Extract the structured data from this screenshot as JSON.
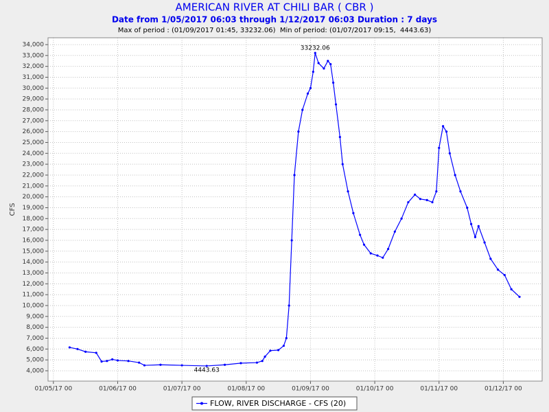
{
  "chart_data": {
    "type": "line",
    "title": "AMERICAN RIVER AT CHILI BAR ( CBR )",
    "subtitle": "Date from 1/05/2017 06:03 through 1/12/2017 06:03 Duration : 7 days",
    "note": "Max of period : (01/09/2017 01:45, 33232.06)  Min of period: (01/07/2017 09:15,  4443.63)",
    "y_label": "CFS",
    "grid": true,
    "xlim": [
      "2017-01-04T22:00",
      "2017-01-12T14:30"
    ],
    "ylim": [
      3050,
      34630
    ],
    "xticks": [
      {
        "value": "2017-01-05T00:00",
        "label": "01/05/17 00"
      },
      {
        "value": "2017-01-06T00:00",
        "label": "01/06/17 00"
      },
      {
        "value": "2017-01-07T00:00",
        "label": "01/07/17 00"
      },
      {
        "value": "2017-01-08T00:00",
        "label": "01/08/17 00"
      },
      {
        "value": "2017-01-09T00:00",
        "label": "01/09/17 00"
      },
      {
        "value": "2017-01-10T00:00",
        "label": "01/10/17 00"
      },
      {
        "value": "2017-01-11T00:00",
        "label": "01/11/17 00"
      },
      {
        "value": "2017-01-12T00:00",
        "label": "01/12/17 00"
      }
    ],
    "yticks": [
      {
        "value": 4000,
        "label": "4,000"
      },
      {
        "value": 5000,
        "label": "5,000"
      },
      {
        "value": 6000,
        "label": "6,000"
      },
      {
        "value": 7000,
        "label": "7,000"
      },
      {
        "value": 8000,
        "label": "8,000"
      },
      {
        "value": 9000,
        "label": "9,000"
      },
      {
        "value": 10000,
        "label": "10,000"
      },
      {
        "value": 11000,
        "label": "11,000"
      },
      {
        "value": 12000,
        "label": "12,000"
      },
      {
        "value": 13000,
        "label": "13,000"
      },
      {
        "value": 14000,
        "label": "14,000"
      },
      {
        "value": 15000,
        "label": "15,000"
      },
      {
        "value": 16000,
        "label": "16,000"
      },
      {
        "value": 17000,
        "label": "17,000"
      },
      {
        "value": 18000,
        "label": "18,000"
      },
      {
        "value": 19000,
        "label": "19,000"
      },
      {
        "value": 20000,
        "label": "20,000"
      },
      {
        "value": 21000,
        "label": "21,000"
      },
      {
        "value": 22000,
        "label": "22,000"
      },
      {
        "value": 23000,
        "label": "23,000"
      },
      {
        "value": 24000,
        "label": "24,000"
      },
      {
        "value": 25000,
        "label": "25,000"
      },
      {
        "value": 26000,
        "label": "26,000"
      },
      {
        "value": 27000,
        "label": "27,000"
      },
      {
        "value": 28000,
        "label": "28,000"
      },
      {
        "value": 29000,
        "label": "29,000"
      },
      {
        "value": 30000,
        "label": "30,000"
      },
      {
        "value": 31000,
        "label": "31,000"
      },
      {
        "value": 32000,
        "label": "32,000"
      },
      {
        "value": 33000,
        "label": "33,000"
      },
      {
        "value": 34000,
        "label": "34,000"
      }
    ],
    "x": [
      "2017-01-05T06:03",
      "2017-01-05T09:00",
      "2017-01-05T12:00",
      "2017-01-05T16:00",
      "2017-01-05T18:00",
      "2017-01-05T20:00",
      "2017-01-05T22:00",
      "2017-01-06T00:00",
      "2017-01-06T04:00",
      "2017-01-06T08:00",
      "2017-01-06T10:00",
      "2017-01-06T16:00",
      "2017-01-07T00:00",
      "2017-01-07T09:15",
      "2017-01-07T16:00",
      "2017-01-07T22:00",
      "2017-01-08T04:00",
      "2017-01-08T06:00",
      "2017-01-08T07:00",
      "2017-01-08T09:00",
      "2017-01-08T12:00",
      "2017-01-08T14:00",
      "2017-01-08T15:00",
      "2017-01-08T16:00",
      "2017-01-08T17:00",
      "2017-01-08T18:00",
      "2017-01-08T19:30",
      "2017-01-08T21:00",
      "2017-01-08T23:00",
      "2017-01-09T00:00",
      "2017-01-09T01:00",
      "2017-01-09T01:45",
      "2017-01-09T03:00",
      "2017-01-09T05:00",
      "2017-01-09T06:30",
      "2017-01-09T07:30",
      "2017-01-09T08:30",
      "2017-01-09T09:30",
      "2017-01-09T11:00",
      "2017-01-09T12:00",
      "2017-01-09T14:00",
      "2017-01-09T16:00",
      "2017-01-09T18:30",
      "2017-01-09T20:00",
      "2017-01-09T22:30",
      "2017-01-10T01:00",
      "2017-01-10T03:00",
      "2017-01-10T05:00",
      "2017-01-10T07:30",
      "2017-01-10T10:00",
      "2017-01-10T12:30",
      "2017-01-10T15:00",
      "2017-01-10T17:00",
      "2017-01-10T19:30",
      "2017-01-10T21:30",
      "2017-01-10T23:00",
      "2017-01-11T00:00",
      "2017-01-11T01:30",
      "2017-01-11T02:45",
      "2017-01-11T04:00",
      "2017-01-11T06:00",
      "2017-01-11T08:00",
      "2017-01-11T10:30",
      "2017-01-11T12:00",
      "2017-01-11T13:30",
      "2017-01-11T14:45",
      "2017-01-11T17:00",
      "2017-01-11T19:15",
      "2017-01-11T22:00",
      "2017-01-12T00:30",
      "2017-01-12T03:00",
      "2017-01-12T06:03"
    ],
    "series": [
      {
        "name": "FLOW, RIVER DISCHARGE - CFS (20)",
        "color": "#0000ff",
        "values": [
          6150,
          6000,
          5750,
          5650,
          4850,
          4900,
          5050,
          4950,
          4900,
          4750,
          4500,
          4550,
          4500,
          4443.63,
          4550,
          4700,
          4750,
          4900,
          5300,
          5850,
          5900,
          6300,
          7000,
          10000,
          16000,
          22000,
          26000,
          28000,
          29500,
          30000,
          31500,
          33232.06,
          32300,
          31800,
          32500,
          32200,
          30500,
          28500,
          25500,
          23000,
          20500,
          18500,
          16500,
          15600,
          14800,
          14600,
          14400,
          15200,
          16800,
          18000,
          19500,
          20200,
          19800,
          19700,
          19500,
          20500,
          24500,
          26500,
          26000,
          24000,
          22000,
          20500,
          19000,
          17500,
          16300,
          17300,
          15800,
          14300,
          13300,
          12800,
          11500,
          10800
        ]
      }
    ],
    "annotations": [
      {
        "x": "2017-01-09T01:45",
        "y": 33232.06
      },
      {
        "x": "2017-01-07T09:15",
        "y": 4443.63
      }
    ]
  }
}
